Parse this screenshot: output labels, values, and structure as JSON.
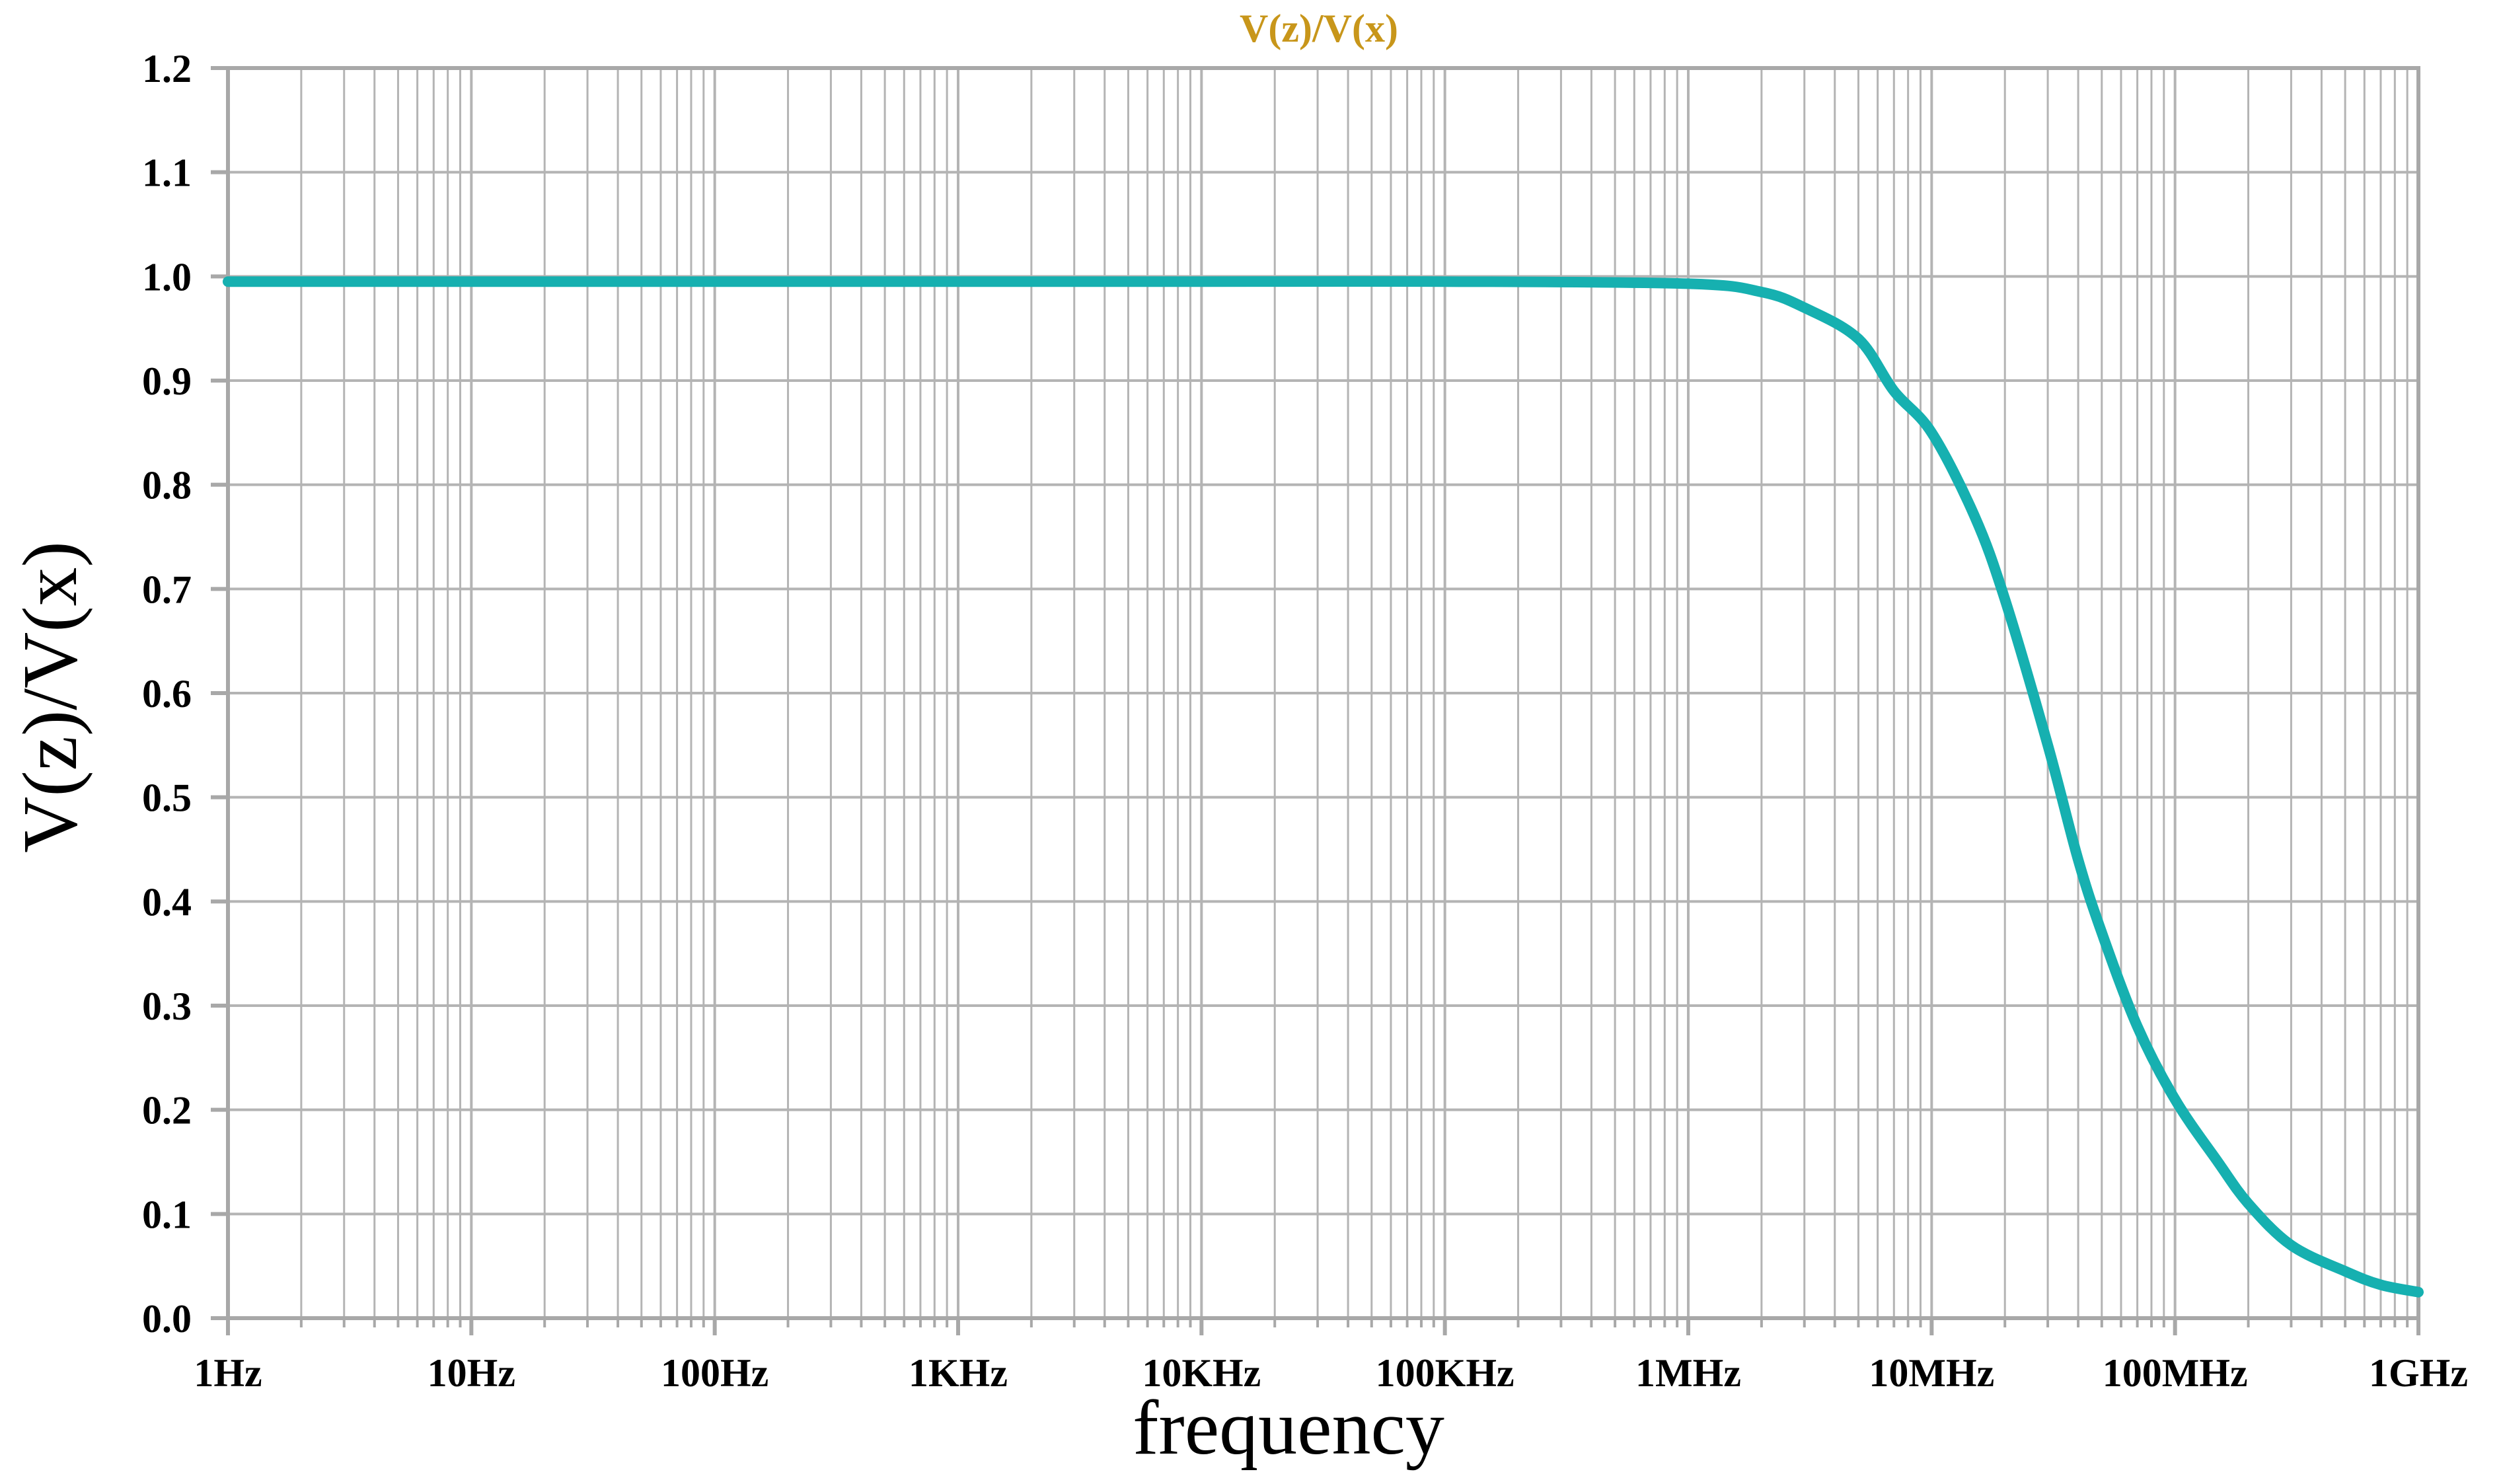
{
  "chart_data": {
    "type": "line",
    "title": "V(z)/V(x)",
    "xlabel": "frequency",
    "ylabel": "V(z)/V(x)",
    "x_scale": "log",
    "xlim": [
      "1Hz",
      "1GHz"
    ],
    "x_ticks": [
      {
        "value": 1,
        "label": "1Hz"
      },
      {
        "value": 10,
        "label": "10Hz"
      },
      {
        "value": 100,
        "label": "100Hz"
      },
      {
        "value": 1000,
        "label": "1KHz"
      },
      {
        "value": 10000,
        "label": "10KHz"
      },
      {
        "value": 100000,
        "label": "100KHz"
      },
      {
        "value": 1000000,
        "label": "1MHz"
      },
      {
        "value": 10000000,
        "label": "10MHz"
      },
      {
        "value": 100000000,
        "label": "100MHz"
      },
      {
        "value": 1000000000,
        "label": "1GHz"
      }
    ],
    "ylim": [
      0,
      1.2
    ],
    "y_ticks": [
      {
        "value": 0.0,
        "label": "0.0"
      },
      {
        "value": 0.1,
        "label": "0.1"
      },
      {
        "value": 0.2,
        "label": "0.2"
      },
      {
        "value": 0.3,
        "label": "0.3"
      },
      {
        "value": 0.4,
        "label": "0.4"
      },
      {
        "value": 0.5,
        "label": "0.5"
      },
      {
        "value": 0.6,
        "label": "0.6"
      },
      {
        "value": 0.7,
        "label": "0.7"
      },
      {
        "value": 0.8,
        "label": "0.8"
      },
      {
        "value": 0.9,
        "label": "0.9"
      },
      {
        "value": 1.0,
        "label": "1.0"
      },
      {
        "value": 1.1,
        "label": "1.1"
      },
      {
        "value": 1.2,
        "label": "1.2"
      }
    ],
    "grid": true,
    "series": [
      {
        "color": "#16b0b0",
        "x": [
          1,
          10,
          100,
          1000,
          10000,
          100000,
          1000000,
          2000000,
          3000000,
          5000000,
          7000000,
          10000000,
          15000000,
          20000000,
          30000000,
          40000000,
          50000000,
          70000000,
          100000000,
          150000000,
          200000000,
          300000000,
          500000000,
          700000000,
          1000000000
        ],
        "y": [
          0.995,
          0.995,
          0.995,
          0.995,
          0.995,
          0.995,
          0.993,
          0.985,
          0.97,
          0.94,
          0.89,
          0.85,
          0.77,
          0.69,
          0.55,
          0.44,
          0.37,
          0.28,
          0.21,
          0.15,
          0.11,
          0.07,
          0.045,
          0.032,
          0.025
        ]
      }
    ]
  },
  "colors": {
    "title": "#c8961a",
    "axis": "#a8a8a8",
    "grid": "#b4b4b4",
    "text": "#000000"
  }
}
